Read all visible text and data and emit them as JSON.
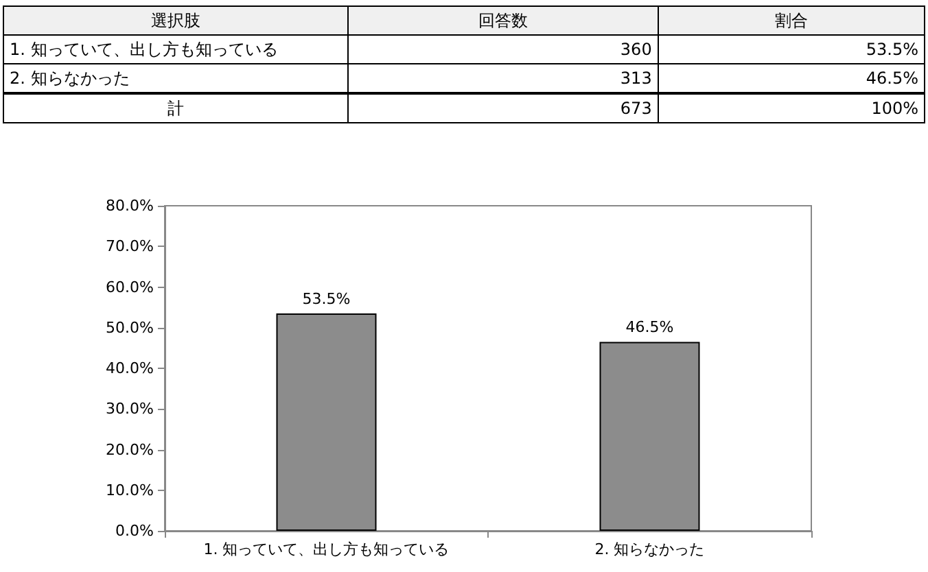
{
  "chart_data": [
    {
      "type": "other",
      "categories": [
        "選択肢",
        "回答数",
        "割合"
      ],
      "annotations": [
        "1. 知っていて、出し方も知っている",
        "360",
        "53.5%",
        "2. 知らなかった",
        "313",
        "46.5%",
        "計",
        "673",
        "100%"
      ]
    },
    {
      "type": "bar",
      "categories": [
        "1. 知っていて、出し方も知っている",
        "2. 知らなかった"
      ],
      "values": [
        53.5,
        46.5
      ],
      "value_labels": [
        "53.5%",
        "46.5%"
      ],
      "color": "#8c8c8c",
      "ylim": [
        0,
        80
      ],
      "yticks": [
        {
          "value": 0,
          "label": "0.0%"
        },
        {
          "value": 10,
          "label": "10.0%"
        },
        {
          "value": 20,
          "label": "20.0%"
        },
        {
          "value": 30,
          "label": "30.0%"
        },
        {
          "value": 40,
          "label": "40.0%"
        },
        {
          "value": 50,
          "label": "50.0%"
        },
        {
          "value": 60,
          "label": "60.0%"
        },
        {
          "value": 70,
          "label": "70.0%"
        },
        {
          "value": 80,
          "label": "80.0%"
        }
      ],
      "grid": false
    }
  ]
}
